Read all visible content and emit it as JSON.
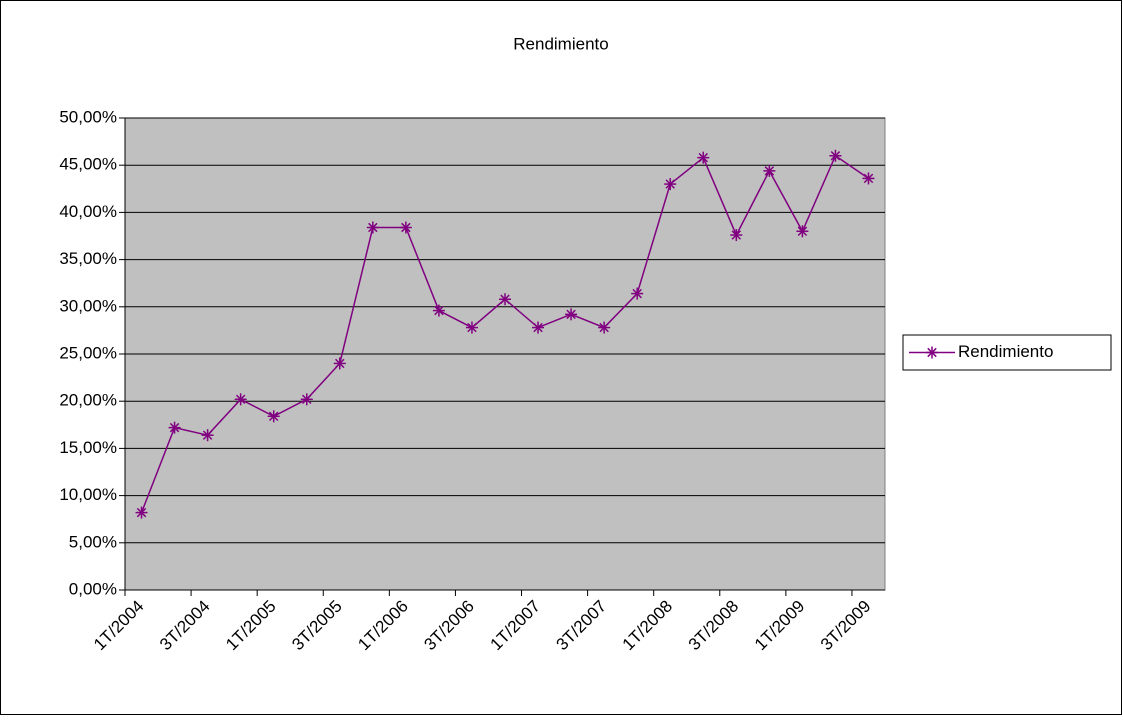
{
  "chart_data": {
    "type": "line",
    "title": "Rendimiento",
    "categories": [
      "1T/2004",
      null,
      "3T/2004",
      null,
      "1T/2005",
      null,
      "3T/2005",
      null,
      "1T/2006",
      null,
      "3T/2006",
      null,
      "1T/2007",
      null,
      "3T/2007",
      null,
      "1T/2008",
      null,
      "3T/2008",
      null,
      "1T/2009",
      null,
      "3T/2009"
    ],
    "series": [
      {
        "name": "Rendimiento",
        "color": "#800080",
        "values": [
          8.2,
          17.2,
          16.4,
          20.2,
          18.4,
          20.2,
          24.0,
          38.4,
          38.4,
          29.6,
          27.8,
          30.8,
          27.8,
          29.2,
          27.8,
          31.4,
          43.0,
          45.8,
          37.6,
          44.4,
          38.0,
          46.0,
          43.6
        ]
      }
    ],
    "ylim": [
      0,
      50
    ],
    "yticks": [
      {
        "value": 0,
        "label": "0,00%"
      },
      {
        "value": 5,
        "label": "5,00%"
      },
      {
        "value": 10,
        "label": "10,00%"
      },
      {
        "value": 15,
        "label": "15,00%"
      },
      {
        "value": 20,
        "label": "20,00%"
      },
      {
        "value": 25,
        "label": "25,00%"
      },
      {
        "value": 30,
        "label": "30,00%"
      },
      {
        "value": 35,
        "label": "35,00%"
      },
      {
        "value": 40,
        "label": "40,00%"
      },
      {
        "value": 45,
        "label": "45,00%"
      },
      {
        "value": 50,
        "label": "50,00%"
      }
    ],
    "grid": true,
    "legend": "right",
    "plot_background": "#c0c0c0"
  }
}
